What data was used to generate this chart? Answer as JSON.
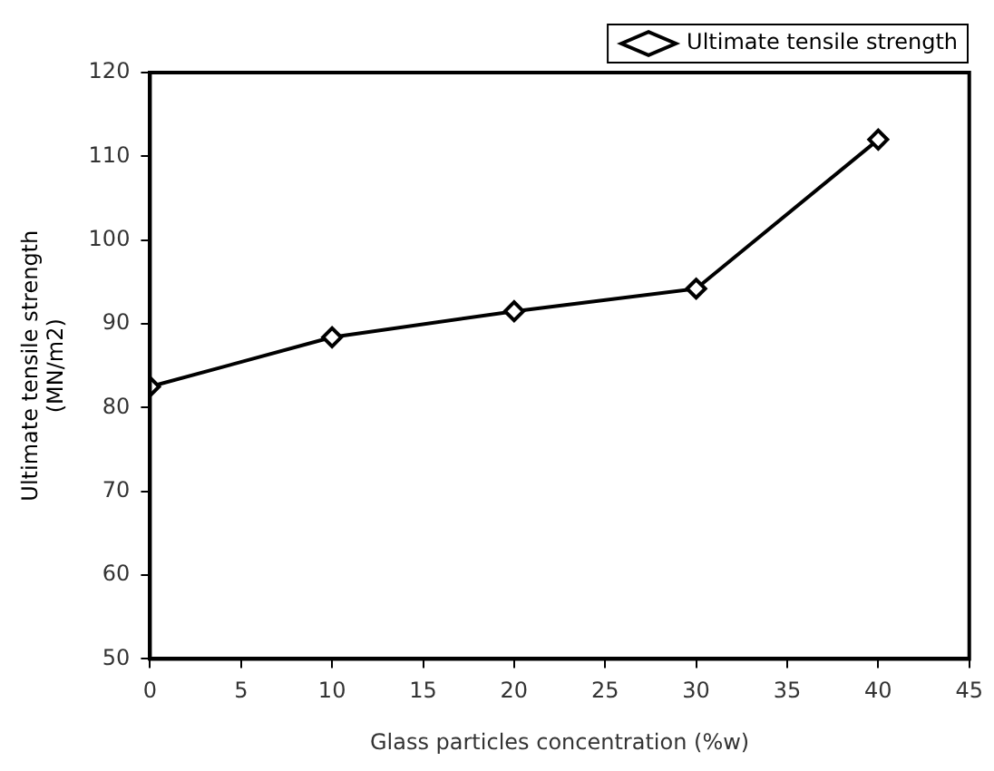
{
  "chart_data": {
    "type": "line",
    "xlabel": "Glass particles concentration (%w)",
    "ylabel": "Ultimate tensile strength\n(MN/m2)",
    "x": [
      0,
      10,
      20,
      30,
      40
    ],
    "series": [
      {
        "name": "Ultimate tensile strength",
        "color": "#000000",
        "values": [
          82.5,
          88.4,
          91.5,
          94.2,
          112
        ]
      }
    ],
    "xlim": [
      0,
      45
    ],
    "xticks": [
      0,
      5,
      10,
      15,
      20,
      25,
      30,
      35,
      40,
      45
    ],
    "ylim": [
      50,
      120
    ],
    "yticks": [
      50,
      60,
      70,
      80,
      90,
      100,
      110,
      120
    ],
    "grid": false,
    "legend": "top right",
    "marker": "diamond",
    "line_style": "solid"
  }
}
